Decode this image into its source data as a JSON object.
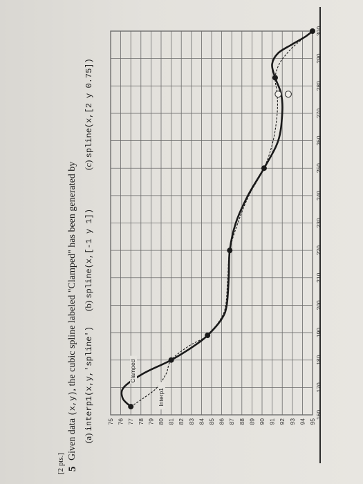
{
  "question": {
    "points": "[2 pts.]",
    "number": "5",
    "text_prefix": "Given data ",
    "text_code": "(x,y)",
    "text_suffix": ", the cubic spline labeled \"Clamped\" has been generated by",
    "options": [
      {
        "label": "(a)",
        "code": "interp1(x,y,'spline')"
      },
      {
        "label": "(b)",
        "code": "spline(x,[-1 y 1])"
      },
      {
        "label": "(c)",
        "code": "spline(x,[2 y 0.75])"
      }
    ]
  },
  "chart_data": {
    "type": "line",
    "orientation": "rotated-90-ccw",
    "x_ticks": [
      160,
      170,
      180,
      190,
      200,
      210,
      220,
      230,
      240,
      250,
      260,
      270,
      280,
      290,
      300
    ],
    "y_ticks": [
      75,
      76,
      77,
      78,
      79,
      80,
      81,
      82,
      83,
      84,
      85,
      86,
      87,
      88,
      89,
      90,
      91,
      92,
      93,
      94,
      95
    ],
    "xlim": [
      160,
      300
    ],
    "ylim": [
      75,
      95
    ],
    "grid": true,
    "points": {
      "x": [
        163,
        180,
        189,
        220,
        250,
        283,
        300
      ],
      "y": [
        77,
        81,
        84.6,
        86.8,
        90.2,
        91.3,
        95
      ]
    },
    "open_points": {
      "x": [
        277,
        277
      ],
      "y": [
        91.6,
        92.6
      ]
    },
    "series": [
      {
        "name": "Clamped",
        "x": [
          163,
          166,
          170,
          175,
          180,
          185,
          189,
          195,
          200,
          210,
          220,
          230,
          240,
          250,
          260,
          270,
          277,
          283,
          288,
          292,
          295,
          298,
          300
        ],
        "y": [
          77,
          76.2,
          76.3,
          78.2,
          81,
          83.2,
          84.6,
          86.0,
          86.5,
          86.7,
          86.8,
          87.4,
          88.6,
          90.2,
          91.6,
          92.0,
          91.9,
          91.3,
          91.0,
          91.6,
          92.9,
          94.3,
          95
        ],
        "color": "#1a1a1a",
        "style": "solid"
      },
      {
        "name": "Interp1",
        "x": [
          163,
          167,
          170,
          175,
          180,
          185,
          189,
          195,
          200,
          210,
          220,
          230,
          240,
          250,
          260,
          270,
          277,
          283,
          288,
          292,
          295,
          300
        ],
        "y": [
          77,
          78.6,
          79.6,
          80.5,
          81,
          82.7,
          84.6,
          85.9,
          86.4,
          86.6,
          86.8,
          87.6,
          88.7,
          90.2,
          91.1,
          91.5,
          91.5,
          91.3,
          91.7,
          92.5,
          93.3,
          95
        ],
        "color": "#1a1a1a",
        "style": "dashed"
      }
    ]
  }
}
